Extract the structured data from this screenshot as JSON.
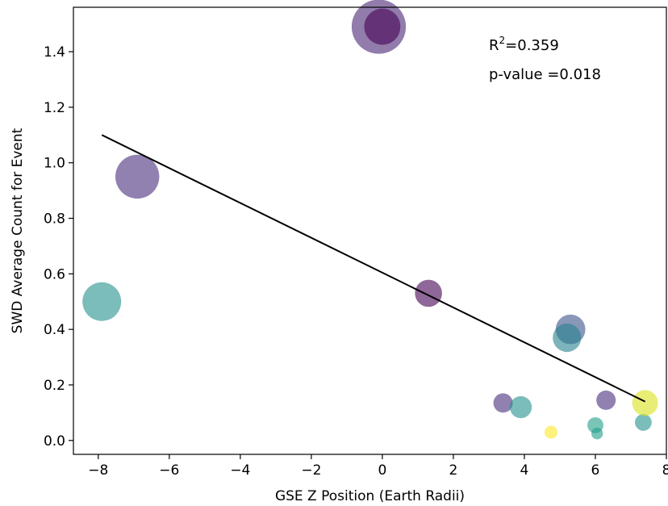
{
  "chart_data": {
    "type": "scatter",
    "xlabel": "GSE Z Position (Earth Radii)",
    "ylabel": "SWD Average Count for Event",
    "xlim": [
      -8.7,
      8.0
    ],
    "ylim": [
      -0.05,
      1.56
    ],
    "x_ticks": [
      -8,
      -6,
      -4,
      -2,
      0,
      2,
      4,
      6,
      8
    ],
    "x_tick_labels": [
      "−8",
      "−6",
      "−4",
      "−2",
      "0",
      "2",
      "4",
      "6",
      "8"
    ],
    "y_ticks": [
      0.0,
      0.2,
      0.4,
      0.6,
      0.8,
      1.0,
      1.2,
      1.4
    ],
    "y_tick_labels": [
      "0.0",
      "0.2",
      "0.4",
      "0.6",
      "0.8",
      "1.0",
      "1.2",
      "1.4"
    ],
    "grid": false,
    "annotations": {
      "r2_prefix": "R",
      "r2_sup": "2",
      "r2_value": "=0.359",
      "pvalue": "p-value =0.018"
    },
    "points": [
      {
        "x": -0.1,
        "y": 1.49,
        "size": 2.1,
        "color": "#482475"
      },
      {
        "x": 0.0,
        "y": 1.49,
        "size": 1.4,
        "color": "#440154"
      },
      {
        "x": -6.9,
        "y": 0.95,
        "size": 1.7,
        "color": "#472d7b"
      },
      {
        "x": -7.9,
        "y": 0.5,
        "size": 1.5,
        "color": "#21918c"
      },
      {
        "x": 1.3,
        "y": 0.53,
        "size": 1.05,
        "color": "#440154"
      },
      {
        "x": 5.3,
        "y": 0.4,
        "size": 1.15,
        "color": "#3b528b"
      },
      {
        "x": 5.2,
        "y": 0.37,
        "size": 1.1,
        "color": "#26828e"
      },
      {
        "x": 3.4,
        "y": 0.135,
        "size": 0.75,
        "color": "#472d7b"
      },
      {
        "x": 3.9,
        "y": 0.12,
        "size": 0.85,
        "color": "#21918c"
      },
      {
        "x": 4.75,
        "y": 0.03,
        "size": 0.5,
        "color": "#fde725"
      },
      {
        "x": 6.0,
        "y": 0.055,
        "size": 0.62,
        "color": "#1f9e89"
      },
      {
        "x": 6.05,
        "y": 0.025,
        "size": 0.45,
        "color": "#1f9e89"
      },
      {
        "x": 6.3,
        "y": 0.145,
        "size": 0.75,
        "color": "#472d7b"
      },
      {
        "x": 7.35,
        "y": 0.065,
        "size": 0.65,
        "color": "#21918c"
      },
      {
        "x": 7.4,
        "y": 0.135,
        "size": 1.0,
        "color": "#d8e219"
      }
    ],
    "fit_line": {
      "x": [
        -7.9,
        7.4
      ],
      "y": [
        1.1,
        0.14
      ],
      "color": "#000000"
    },
    "point_alpha": 0.6
  }
}
